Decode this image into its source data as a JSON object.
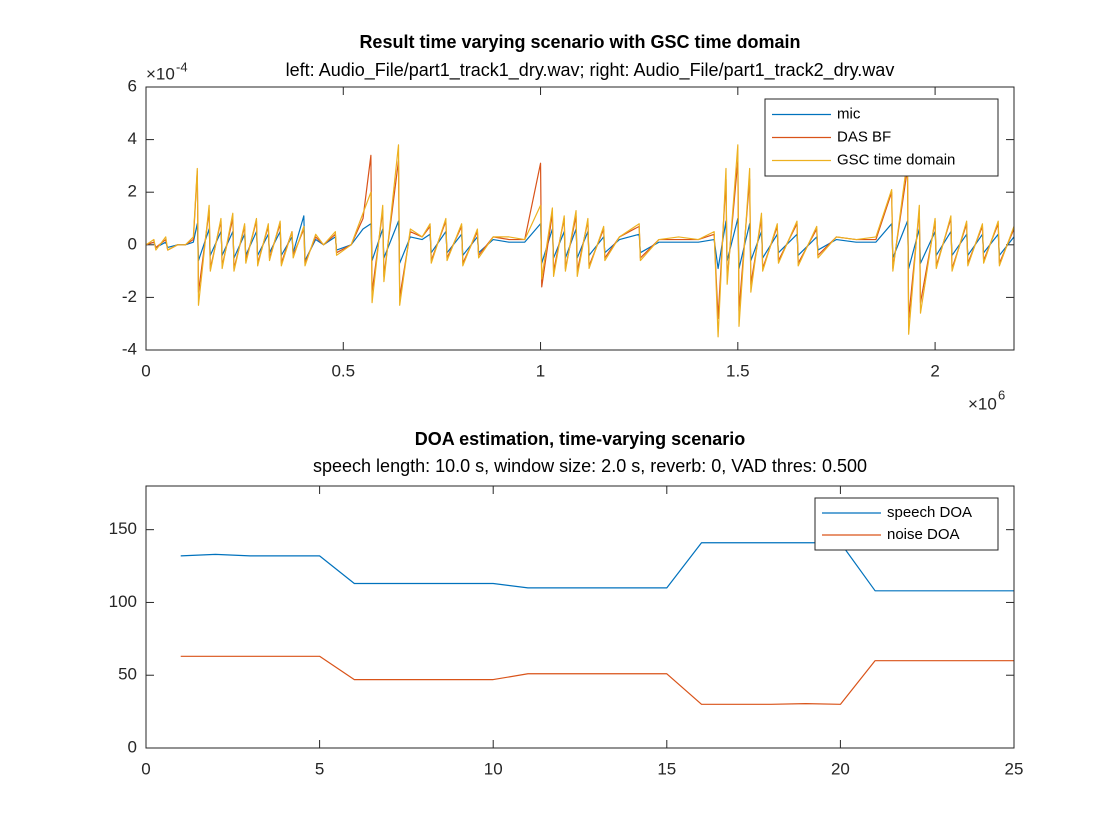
{
  "chart_data": [
    {
      "type": "line",
      "title": "Result time varying scenario with GSC time domain",
      "subtitle": "left: Audio_File/part1_track1_dry.wav; right: Audio_File/part1_track2_dry.wav",
      "y_exponent": {
        "base": "×10",
        "power": "-4"
      },
      "x_exponent": {
        "base": "×10",
        "power": "6"
      },
      "xlim": [
        0,
        2.2
      ],
      "xticks": [
        0,
        0.5,
        1,
        1.5,
        2
      ],
      "ylim": [
        -4,
        6
      ],
      "yticks": [
        -4,
        -2,
        0,
        2,
        4,
        6
      ],
      "legend": "northeast",
      "x": [
        0,
        0.02,
        0.025,
        0.05,
        0.055,
        0.08,
        0.1,
        0.12,
        0.13,
        0.133,
        0.16,
        0.163,
        0.19,
        0.193,
        0.22,
        0.223,
        0.25,
        0.253,
        0.28,
        0.283,
        0.31,
        0.313,
        0.34,
        0.343,
        0.37,
        0.373,
        0.4,
        0.403,
        0.43,
        0.45,
        0.48,
        0.483,
        0.52,
        0.55,
        0.57,
        0.573,
        0.6,
        0.603,
        0.64,
        0.643,
        0.67,
        0.7,
        0.72,
        0.723,
        0.76,
        0.763,
        0.8,
        0.803,
        0.84,
        0.843,
        0.88,
        0.92,
        0.96,
        1.0,
        1.003,
        1.03,
        1.033,
        1.06,
        1.063,
        1.09,
        1.093,
        1.12,
        1.123,
        1.16,
        1.163,
        1.2,
        1.25,
        1.253,
        1.3,
        1.35,
        1.4,
        1.44,
        1.45,
        1.47,
        1.473,
        1.5,
        1.503,
        1.53,
        1.533,
        1.56,
        1.563,
        1.6,
        1.603,
        1.65,
        1.653,
        1.7,
        1.703,
        1.75,
        1.8,
        1.85,
        1.89,
        1.893,
        1.93,
        1.933,
        1.96,
        1.963,
        2.0,
        2.003,
        2.04,
        2.043,
        2.08,
        2.083,
        2.12,
        2.123,
        2.16,
        2.163,
        2.2
      ],
      "series": [
        {
          "name": "mic",
          "color": "#0072BD",
          "values": [
            0,
            0.1,
            -0.1,
            0.1,
            -0.1,
            0,
            0,
            0.1,
            0.8,
            -0.6,
            0.6,
            -0.4,
            0.5,
            -0.4,
            0.5,
            -0.5,
            0.4,
            -0.4,
            0.5,
            -0.4,
            0.4,
            -0.3,
            0.5,
            -0.4,
            0.3,
            -0.3,
            1.1,
            -0.6,
            0.2,
            0,
            0.3,
            -0.2,
            0,
            0.6,
            0.8,
            -0.6,
            0.6,
            -0.5,
            0.9,
            -0.7,
            0.3,
            0.2,
            0.4,
            -0.3,
            0.5,
            -0.3,
            0.4,
            -0.4,
            0.3,
            -0.3,
            0.2,
            0.1,
            0.1,
            0.8,
            -0.7,
            0.6,
            -0.5,
            0.5,
            -0.5,
            0.6,
            -0.5,
            0.5,
            -0.4,
            0.3,
            -0.3,
            0.2,
            0.4,
            -0.3,
            0.1,
            0.1,
            0.1,
            0.2,
            -0.9,
            0.9,
            -0.6,
            1.0,
            -0.9,
            0.8,
            -0.6,
            0.5,
            -0.5,
            0.4,
            -0.3,
            0.4,
            -0.4,
            0.3,
            -0.2,
            0.2,
            0.1,
            0.1,
            0.8,
            -0.5,
            0.9,
            -0.9,
            0.6,
            -0.7,
            0.5,
            -0.4,
            0.5,
            -0.4,
            0.4,
            -0.4,
            0.4,
            -0.3,
            0.4,
            -0.4,
            0.3
          ]
        },
        {
          "name": "DAS BF",
          "color": "#D95319",
          "values": [
            0,
            0.1,
            -0.1,
            0.2,
            -0.2,
            0,
            0,
            0.2,
            2.8,
            -1.8,
            1.3,
            -0.9,
            0.9,
            -0.8,
            1.0,
            -0.9,
            0.7,
            -0.6,
            0.9,
            -0.7,
            0.7,
            -0.5,
            0.8,
            -0.7,
            0.5,
            -0.4,
            0.6,
            -0.7,
            0.3,
            0,
            0.4,
            -0.3,
            0,
            1.0,
            3.4,
            -1.8,
            1.3,
            -1.2,
            3.2,
            -2.0,
            0.5,
            0.3,
            0.7,
            -0.6,
            0.9,
            -0.5,
            0.7,
            -0.7,
            0.5,
            -0.4,
            0.3,
            0.2,
            0.2,
            3.1,
            -1.6,
            1.2,
            -1.0,
            1.0,
            -0.9,
            1.1,
            -1.0,
            0.9,
            -0.8,
            0.6,
            -0.5,
            0.3,
            0.7,
            -0.5,
            0.2,
            0.2,
            0.2,
            0.4,
            -2.8,
            2.5,
            -1.3,
            3.2,
            -2.5,
            2.5,
            -1.5,
            1.0,
            -0.9,
            0.7,
            -0.6,
            0.8,
            -0.7,
            0.6,
            -0.4,
            0.3,
            0.2,
            0.2,
            2.0,
            -0.9,
            2.9,
            -2.8,
            1.3,
            -2.2,
            0.9,
            -0.8,
            1.0,
            -0.9,
            0.8,
            -0.7,
            0.7,
            -0.6,
            0.8,
            -0.7,
            0.6
          ]
        },
        {
          "name": "GSC time domain",
          "color": "#EDB120",
          "values": [
            0,
            0.2,
            -0.2,
            0.3,
            -0.2,
            0,
            0,
            0.3,
            2.9,
            -2.3,
            1.5,
            -1.0,
            1.0,
            -0.9,
            1.2,
            -1.0,
            0.8,
            -0.7,
            1.0,
            -0.8,
            0.8,
            -0.6,
            0.9,
            -0.8,
            0.5,
            -0.5,
            0.7,
            -0.8,
            0.4,
            0,
            0.5,
            -0.4,
            0,
            1.2,
            2.0,
            -2.2,
            1.5,
            -1.4,
            3.8,
            -2.3,
            0.6,
            0.3,
            0.8,
            -0.7,
            1.0,
            -0.6,
            0.8,
            -0.8,
            0.6,
            -0.5,
            0.3,
            0.3,
            0.2,
            1.5,
            -1.3,
            1.4,
            -1.2,
            1.1,
            -1.0,
            1.3,
            -1.2,
            1.0,
            -0.9,
            0.7,
            -0.6,
            0.3,
            0.8,
            -0.6,
            0.2,
            0.3,
            0.2,
            0.5,
            -3.5,
            2.9,
            -1.5,
            3.8,
            -3.1,
            2.9,
            -1.8,
            1.2,
            -1.0,
            0.8,
            -0.7,
            0.9,
            -0.8,
            0.7,
            -0.5,
            0.3,
            0.2,
            0.3,
            2.1,
            -1.0,
            3.3,
            -3.4,
            1.5,
            -2.6,
            1.0,
            -0.9,
            1.1,
            -1.0,
            0.9,
            -0.8,
            0.8,
            -0.7,
            0.9,
            -0.8,
            0.7
          ]
        }
      ]
    },
    {
      "type": "line",
      "title": "DOA estimation, time-varying scenario",
      "subtitle": "speech length: 10.0 s, window size: 2.0 s, reverb: 0, VAD thres: 0.500",
      "xlim": [
        0,
        25
      ],
      "xticks": [
        0,
        5,
        10,
        15,
        20,
        25
      ],
      "ylim": [
        0,
        180
      ],
      "yticks": [
        0,
        50,
        100,
        150
      ],
      "legend": "northeast",
      "x": [
        1,
        2,
        3,
        4,
        5,
        6,
        7,
        8,
        9,
        10,
        11,
        12,
        13,
        14,
        15,
        16,
        17,
        18,
        19,
        20,
        21,
        22,
        23,
        24,
        25
      ],
      "series": [
        {
          "name": "speech DOA",
          "color": "#0072BD",
          "values": [
            132,
            133,
            132,
            132,
            132,
            113,
            113,
            113,
            113,
            113,
            110,
            110,
            110,
            110,
            110,
            141,
            141,
            141,
            141,
            141,
            108,
            108,
            108,
            108,
            108
          ]
        },
        {
          "name": "noise DOA",
          "color": "#D95319",
          "values": [
            63,
            63,
            63,
            63,
            63,
            47,
            47,
            47,
            47,
            47,
            51,
            51,
            51,
            51,
            51,
            30,
            30,
            30,
            30.5,
            30,
            60,
            60,
            60,
            60,
            60
          ]
        }
      ]
    }
  ]
}
